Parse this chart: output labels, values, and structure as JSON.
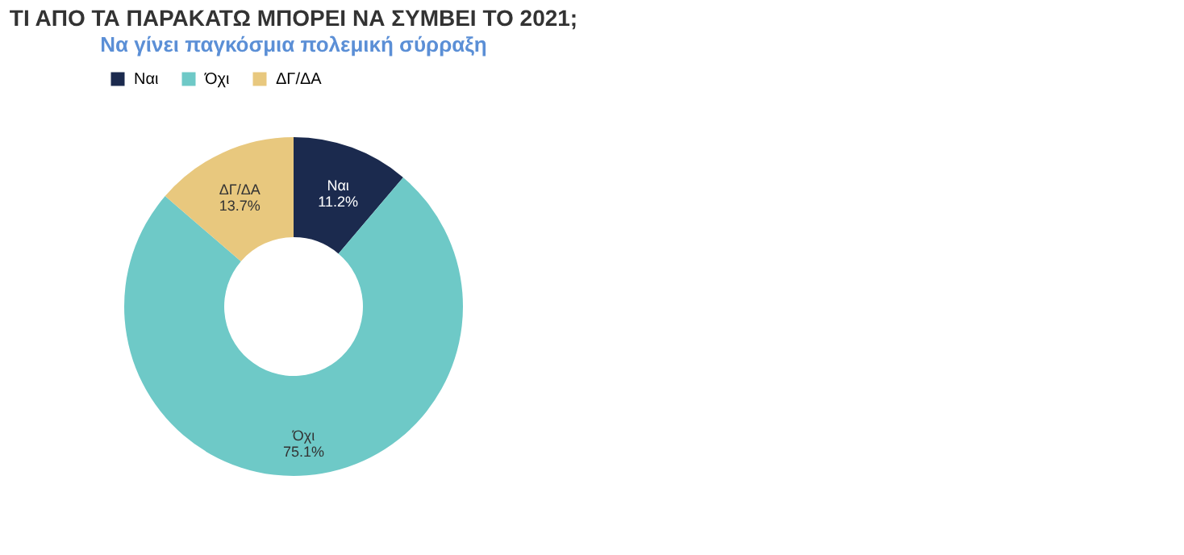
{
  "chart_data": {
    "type": "donut",
    "title": "ΤΙ ΑΠΟ ΤΑ ΠΑΡΑΚΑΤΩ ΜΠΟΡΕΙ ΝΑ ΣΥΜΒΕΙ ΤΟ 2021;",
    "subtitle": "Να γίνει παγκόσμια πολεμική σύρραξη",
    "categories": [
      "Ναι",
      "Όχι",
      "ΔΓ/ΔΑ"
    ],
    "values": [
      11.2,
      75.1,
      13.7
    ],
    "value_labels": [
      "11.2%",
      "75.1%",
      "13.7%"
    ],
    "colors": [
      "#1b2a4e",
      "#6ec9c7",
      "#e8c87e"
    ],
    "legend": "top"
  }
}
